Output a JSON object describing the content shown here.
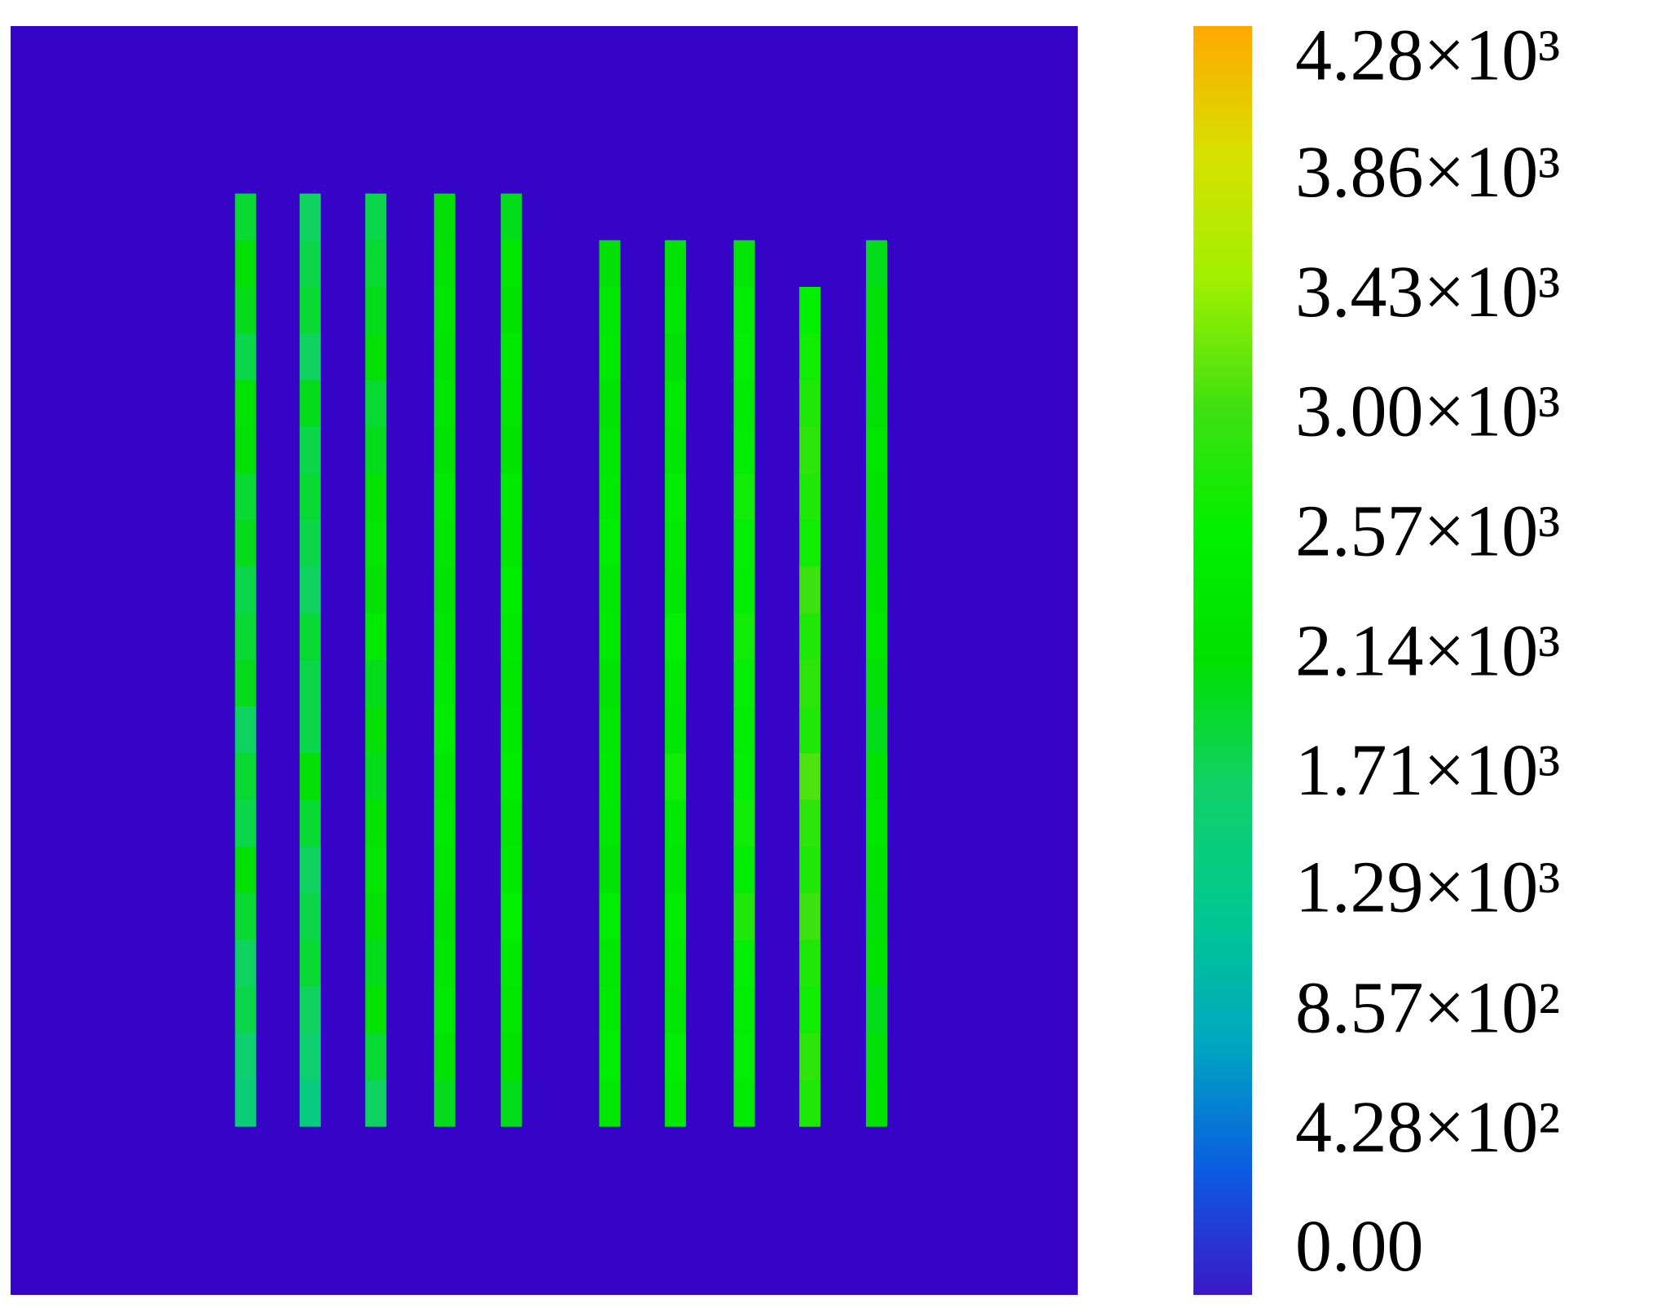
{
  "chart_data": {
    "type": "heatmap",
    "xlim": [
      0,
      1008
    ],
    "ylim": [
      0,
      1197
    ],
    "x": [
      222,
      283,
      345,
      410,
      473,
      566,
      628,
      693,
      755,
      818
    ],
    "y": [
      180,
      224,
      268,
      312,
      356,
      400,
      444,
      488,
      532,
      576,
      620,
      664,
      708,
      752,
      796,
      840,
      884,
      928,
      972,
      1016
    ],
    "z": [
      [
        1900,
        2100,
        2000,
        1800,
        2200,
        2100,
        1900,
        2000,
        1800,
        1900,
        2000,
        1700,
        1900,
        1800,
        2100,
        1900,
        1700,
        1800,
        1600,
        1500
      ],
      [
        1700,
        1800,
        1900,
        1700,
        2000,
        1800,
        1900,
        1800,
        1700,
        1900,
        1800,
        1800,
        2100,
        1900,
        1700,
        1800,
        1900,
        1700,
        1600,
        1400
      ],
      [
        1800,
        1900,
        2000,
        2100,
        1900,
        2000,
        2200,
        2300,
        2100,
        2400,
        2000,
        2100,
        2000,
        2200,
        2300,
        2100,
        2000,
        2200,
        1900,
        1700
      ],
      [
        2100,
        2200,
        2300,
        2200,
        2300,
        2200,
        2400,
        2300,
        2200,
        2300,
        2400,
        2500,
        2300,
        2400,
        2300,
        2200,
        2300,
        2400,
        2200,
        2000
      ],
      [
        2000,
        2300,
        2200,
        2400,
        2300,
        2200,
        2400,
        2300,
        2500,
        2400,
        2300,
        2400,
        2500,
        2300,
        2400,
        2600,
        2400,
        2300,
        2200,
        2000
      ],
      [
        null,
        2100,
        2300,
        2400,
        2200,
        2300,
        2400,
        2500,
        2300,
        2400,
        2200,
        2300,
        2400,
        2300,
        2200,
        2500,
        2300,
        2400,
        2500,
        2300
      ],
      [
        null,
        2200,
        2300,
        2100,
        2400,
        2300,
        2500,
        2400,
        2300,
        2600,
        2400,
        2300,
        2700,
        2400,
        2300,
        2500,
        2400,
        2300,
        2500,
        2400
      ],
      [
        null,
        2300,
        2500,
        2600,
        2400,
        2500,
        2700,
        2600,
        2500,
        2700,
        2600,
        2500,
        2600,
        2700,
        2500,
        2800,
        2600,
        2500,
        2600,
        2400
      ],
      [
        null,
        null,
        2600,
        2700,
        2800,
        2900,
        2800,
        2700,
        3000,
        2800,
        2900,
        2800,
        3100,
        2900,
        2800,
        3000,
        2800,
        2700,
        2900,
        2800
      ],
      [
        null,
        2000,
        2100,
        2200,
        2100,
        2300,
        2200,
        2100,
        2200,
        2300,
        2100,
        2000,
        2200,
        2300,
        2200,
        2100,
        2200,
        2000,
        2100,
        2200
      ]
    ],
    "clim": [
      -160,
      4400
    ],
    "background": "#3504c6",
    "colorscale": [
      "#3a18c8",
      "#0a5ce0",
      "#00a8c0",
      "#00c890",
      "#10d068",
      "#00e000",
      "#00f000",
      "#40e010",
      "#a0f000",
      "#d8e000",
      "#ffa800"
    ],
    "colorbar_ticks": [
      {
        "value": 0,
        "label": "0.00"
      },
      {
        "value": 428,
        "label": "4.28×10²"
      },
      {
        "value": 857,
        "label": "8.57×10²"
      },
      {
        "value": 1290,
        "label": "1.29×10³"
      },
      {
        "value": 1710,
        "label": "1.71×10³"
      },
      {
        "value": 2140,
        "label": "2.14×10³"
      },
      {
        "value": 2570,
        "label": "2.57×10³"
      },
      {
        "value": 3000,
        "label": "3.00×10³"
      },
      {
        "value": 3430,
        "label": "3.43×10³"
      },
      {
        "value": 3860,
        "label": "3.86×10³"
      },
      {
        "value": 4280,
        "label": "4.28×10³"
      }
    ]
  }
}
